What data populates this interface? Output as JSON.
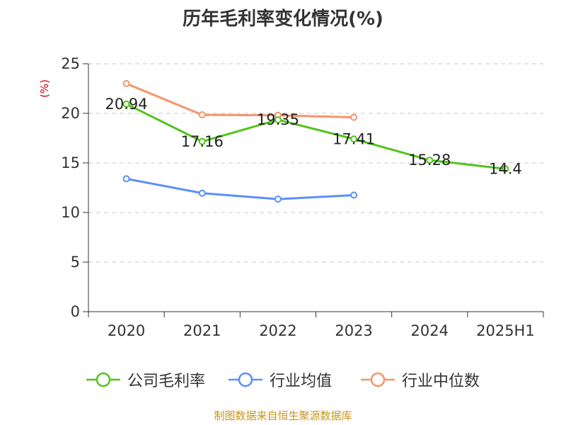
{
  "title": "历年毛利率变化情况(%)",
  "source": "制图数据来自恒生聚源数据库",
  "chart_data": {
    "type": "line",
    "title": "历年毛利率变化情况(%)",
    "ylabel": "(%)",
    "ylim": [
      0,
      25
    ],
    "yticks": [
      "0",
      "5",
      "10",
      "15",
      "20",
      "25"
    ],
    "categories": [
      "2020",
      "2021",
      "2022",
      "2023",
      "2024",
      "2025H1"
    ],
    "grid": true,
    "legend_position": "bottom",
    "series": [
      {
        "name": "公司毛利率",
        "color": "#52c41a",
        "values": [
          20.94,
          17.16,
          19.35,
          17.41,
          15.28,
          14.4
        ],
        "labels": [
          "20.94",
          "17.16",
          "19.35",
          "17.41",
          "15.28",
          "14.4"
        ]
      },
      {
        "name": "行业均值",
        "color": "#5b8ff9",
        "values": [
          13.4,
          11.95,
          11.35,
          11.75,
          null,
          null
        ]
      },
      {
        "name": "行业中位数",
        "color": "#f4956a",
        "values": [
          23.0,
          19.85,
          19.8,
          19.6,
          null,
          null
        ]
      }
    ]
  }
}
